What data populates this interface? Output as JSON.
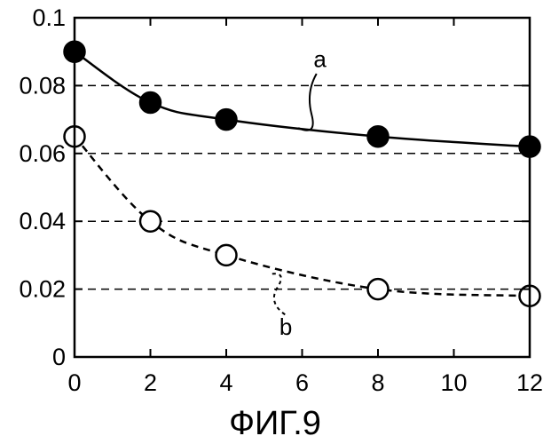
{
  "chart_data": {
    "type": "line",
    "title": "",
    "caption": "ФИГ.9",
    "xlabel": "",
    "ylabel": "",
    "x_ticks": [
      "0",
      "2",
      "4",
      "6",
      "8",
      "10",
      "12"
    ],
    "y_ticks": [
      "0",
      "0.02",
      "0.04",
      "0.06",
      "0.08",
      "0.1"
    ],
    "xlim": [
      0,
      12
    ],
    "ylim": [
      0,
      0.1
    ],
    "grid": "horizontal-dashed",
    "gridlines_y": [
      0.02,
      0.04,
      0.06,
      0.08
    ],
    "series": [
      {
        "name": "a",
        "marker": "filled-circle",
        "line": "solid",
        "x": [
          0,
          2,
          4,
          8,
          12
        ],
        "y": [
          0.09,
          0.075,
          0.07,
          0.065,
          0.062
        ]
      },
      {
        "name": "b",
        "marker": "open-circle",
        "line": "dashed",
        "x": [
          0,
          2,
          4,
          8,
          12
        ],
        "y": [
          0.065,
          0.04,
          0.03,
          0.02,
          0.018
        ]
      }
    ]
  }
}
